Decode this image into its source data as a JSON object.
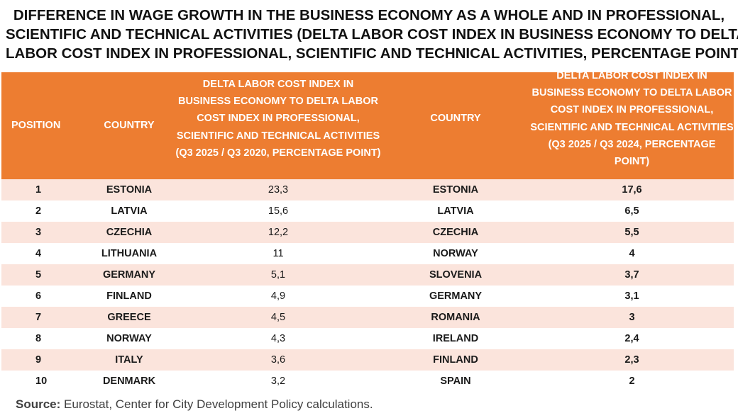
{
  "title": {
    "line1": "DIFFERENCE IN WAGE GROWTH IN THE BUSINESS ECONOMY AS A WHOLE AND IN PROFESSIONAL,",
    "line2": "SCIENTIFIC AND TECHNICAL ACTIVITIES (DELTA LABOR COST INDEX IN BUSINESS ECONOMY TO DELTA",
    "line3": "LABOR COST INDEX  IN PROFESSIONAL, SCIENTIFIC AND TECHNICAL ACTIVITIES, PERCENTAGE POINT)"
  },
  "header": {
    "position": "POSITION",
    "country_left": "COUNTRY",
    "value_left": "DELTA LABOR COST INDEX IN BUSINESS ECONOMY TO DELTA LABOR COST INDEX  IN PROFESSIONAL, SCIENTIFIC AND TECHNICAL ACTIVITIES (Q3 2025 / Q3 2020, PERCENTAGE POINT)",
    "country_right": "COUNTRY",
    "value_right": "DELTA LABOR COST INDEX IN BUSINESS ECONOMY TO DELTA LABOR COST INDEX  IN PROFESSIONAL, SCIENTIFIC AND TECHNICAL ACTIVITIES (Q3 2025 / Q3 2024, PERCENTAGE POINT)"
  },
  "rows": [
    {
      "pos": "1",
      "country_a": "ESTONIA",
      "value_a": "23,3",
      "country_b": "ESTONIA",
      "value_b": "17,6"
    },
    {
      "pos": "2",
      "country_a": "LATVIA",
      "value_a": "15,6",
      "country_b": "LATVIA",
      "value_b": "6,5"
    },
    {
      "pos": "3",
      "country_a": "CZECHIA",
      "value_a": "12,2",
      "country_b": "CZECHIA",
      "value_b": "5,5"
    },
    {
      "pos": "4",
      "country_a": "LITHUANIA",
      "value_a": "11",
      "country_b": "NORWAY",
      "value_b": "4"
    },
    {
      "pos": "5",
      "country_a": "GERMANY",
      "value_a": "5,1",
      "country_b": "SLOVENIA",
      "value_b": "3,7"
    },
    {
      "pos": "6",
      "country_a": "FINLAND",
      "value_a": "4,9",
      "country_b": "GERMANY",
      "value_b": "3,1"
    },
    {
      "pos": "7",
      "country_a": "GREECE",
      "value_a": "4,5",
      "country_b": "ROMANIA",
      "value_b": "3"
    },
    {
      "pos": "8",
      "country_a": "NORWAY",
      "value_a": "4,3",
      "country_b": "IRELAND",
      "value_b": "2,4"
    },
    {
      "pos": "9",
      "country_a": "ITALY",
      "value_a": "3,6",
      "country_b": "FINLAND",
      "value_b": "2,3"
    },
    {
      "pos": "10",
      "country_a": "DENMARK",
      "value_a": "3,2",
      "country_b": "SPAIN",
      "value_b": "2"
    }
  ],
  "source": {
    "label": "Source:",
    "text": " Eurostat, Center for City Development Policy calculations."
  }
}
